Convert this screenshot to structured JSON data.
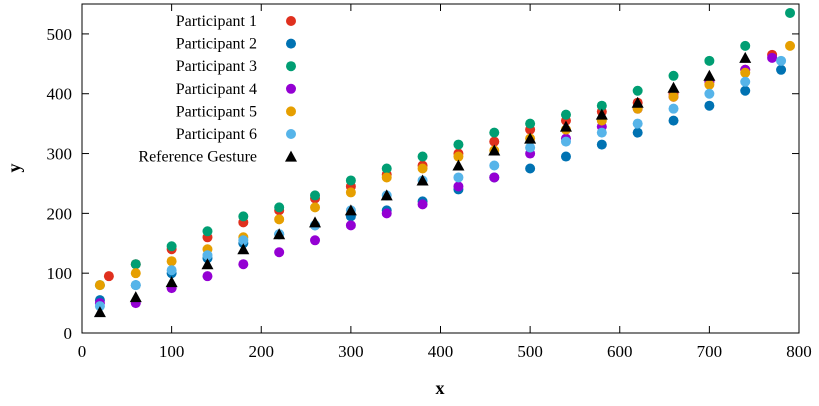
{
  "chart_data": {
    "type": "scatter",
    "title": "",
    "xlabel": "x",
    "ylabel": "y",
    "xlim": [
      0,
      800
    ],
    "ylim": [
      0,
      550
    ],
    "x_ticks": [
      0,
      100,
      200,
      300,
      400,
      500,
      600,
      700,
      800
    ],
    "y_ticks": [
      0,
      100,
      200,
      300,
      400,
      500
    ],
    "grid": false,
    "legend_position": "top-left",
    "series": [
      {
        "name": "Participant 1",
        "color": "#e0301e",
        "marker": "circle",
        "points": [
          [
            30,
            95
          ],
          [
            60,
            115
          ],
          [
            100,
            140
          ],
          [
            140,
            160
          ],
          [
            180,
            185
          ],
          [
            220,
            205
          ],
          [
            260,
            225
          ],
          [
            300,
            245
          ],
          [
            340,
            265
          ],
          [
            380,
            280
          ],
          [
            420,
            300
          ],
          [
            460,
            320
          ],
          [
            500,
            340
          ],
          [
            540,
            355
          ],
          [
            580,
            370
          ],
          [
            620,
            385
          ],
          [
            660,
            400
          ],
          [
            700,
            420
          ],
          [
            740,
            440
          ],
          [
            770,
            465
          ]
        ]
      },
      {
        "name": "Participant 2",
        "color": "#0072b2",
        "marker": "circle",
        "points": [
          [
            20,
            55
          ],
          [
            60,
            80
          ],
          [
            100,
            100
          ],
          [
            140,
            125
          ],
          [
            180,
            150
          ],
          [
            220,
            165
          ],
          [
            260,
            180
          ],
          [
            300,
            195
          ],
          [
            340,
            205
          ],
          [
            380,
            220
          ],
          [
            420,
            240
          ],
          [
            460,
            260
          ],
          [
            500,
            275
          ],
          [
            540,
            295
          ],
          [
            580,
            315
          ],
          [
            620,
            335
          ],
          [
            660,
            355
          ],
          [
            700,
            380
          ],
          [
            740,
            405
          ],
          [
            780,
            440
          ]
        ]
      },
      {
        "name": "Participant 3",
        "color": "#009e73",
        "marker": "circle",
        "points": [
          [
            20,
            80
          ],
          [
            60,
            115
          ],
          [
            100,
            145
          ],
          [
            140,
            170
          ],
          [
            180,
            195
          ],
          [
            220,
            210
          ],
          [
            260,
            230
          ],
          [
            300,
            255
          ],
          [
            340,
            275
          ],
          [
            380,
            295
          ],
          [
            420,
            315
          ],
          [
            460,
            335
          ],
          [
            500,
            350
          ],
          [
            540,
            365
          ],
          [
            580,
            380
          ],
          [
            620,
            405
          ],
          [
            660,
            430
          ],
          [
            700,
            455
          ],
          [
            740,
            480
          ],
          [
            790,
            535
          ]
        ]
      },
      {
        "name": "Participant 4",
        "color": "#9400d3",
        "marker": "circle",
        "points": [
          [
            20,
            50
          ],
          [
            60,
            50
          ],
          [
            100,
            75
          ],
          [
            140,
            95
          ],
          [
            180,
            115
          ],
          [
            220,
            135
          ],
          [
            260,
            155
          ],
          [
            300,
            180
          ],
          [
            340,
            200
          ],
          [
            380,
            215
          ],
          [
            420,
            245
          ],
          [
            460,
            260
          ],
          [
            500,
            300
          ],
          [
            540,
            325
          ],
          [
            580,
            345
          ],
          [
            620,
            375
          ],
          [
            660,
            395
          ],
          [
            700,
            420
          ],
          [
            740,
            440
          ],
          [
            770,
            460
          ]
        ]
      },
      {
        "name": "Participant 5",
        "color": "#e69f00",
        "marker": "circle",
        "points": [
          [
            20,
            80
          ],
          [
            60,
            100
          ],
          [
            100,
            120
          ],
          [
            140,
            140
          ],
          [
            180,
            160
          ],
          [
            220,
            190
          ],
          [
            260,
            210
          ],
          [
            300,
            235
          ],
          [
            340,
            260
          ],
          [
            380,
            275
          ],
          [
            420,
            295
          ],
          [
            460,
            305
          ],
          [
            500,
            325
          ],
          [
            540,
            340
          ],
          [
            580,
            355
          ],
          [
            620,
            375
          ],
          [
            660,
            395
          ],
          [
            700,
            415
          ],
          [
            740,
            435
          ],
          [
            790,
            480
          ]
        ]
      },
      {
        "name": "Participant 6",
        "color": "#56b4e9",
        "marker": "circle",
        "points": [
          [
            20,
            45
          ],
          [
            60,
            80
          ],
          [
            100,
            105
          ],
          [
            140,
            130
          ],
          [
            180,
            155
          ],
          [
            220,
            165
          ],
          [
            260,
            180
          ],
          [
            300,
            205
          ],
          [
            340,
            230
          ],
          [
            380,
            255
          ],
          [
            420,
            260
          ],
          [
            460,
            280
          ],
          [
            500,
            310
          ],
          [
            540,
            320
          ],
          [
            580,
            335
          ],
          [
            620,
            350
          ],
          [
            660,
            375
          ],
          [
            700,
            400
          ],
          [
            740,
            420
          ],
          [
            780,
            455
          ]
        ]
      },
      {
        "name": "Reference Gesture",
        "color": "#000000",
        "marker": "triangle",
        "points": [
          [
            20,
            35
          ],
          [
            60,
            60
          ],
          [
            100,
            85
          ],
          [
            140,
            115
          ],
          [
            180,
            140
          ],
          [
            220,
            165
          ],
          [
            260,
            185
          ],
          [
            300,
            205
          ],
          [
            340,
            230
          ],
          [
            380,
            255
          ],
          [
            420,
            280
          ],
          [
            460,
            305
          ],
          [
            500,
            325
          ],
          [
            540,
            345
          ],
          [
            580,
            365
          ],
          [
            620,
            385
          ],
          [
            660,
            410
          ],
          [
            700,
            430
          ],
          [
            740,
            460
          ]
        ]
      }
    ]
  }
}
